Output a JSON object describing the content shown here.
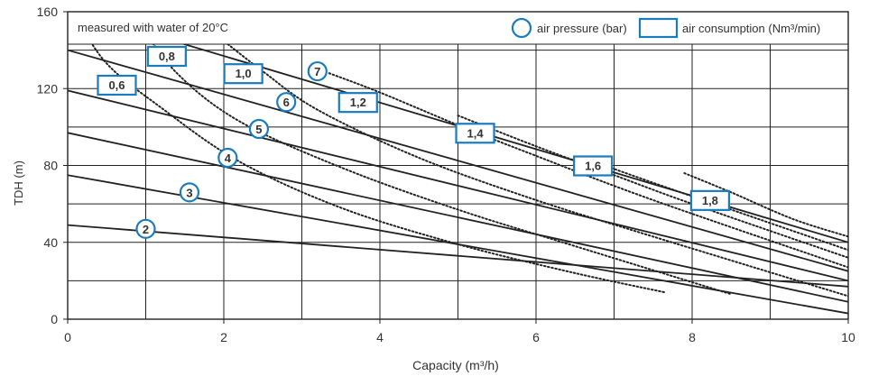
{
  "chart_data": {
    "type": "line",
    "note": "measured with water of 20°C",
    "legend": [
      {
        "shape": "circle",
        "label": "air pressure (bar)"
      },
      {
        "shape": "rect",
        "label": "air consumption (Nm³/min)"
      }
    ],
    "xlabel": "Capacity (m³/h)",
    "ylabel": "TDH (m)",
    "xlim": [
      0,
      10
    ],
    "ylim": [
      0,
      160
    ],
    "x_ticks": [
      "0",
      "2",
      "4",
      "6",
      "8",
      "10"
    ],
    "y_ticks": [
      "0",
      "40",
      "80",
      "120",
      "160"
    ],
    "grid": true,
    "colors": {
      "accent": "#1a7bbf",
      "line": "#222222",
      "grid": "#222222"
    },
    "pressure_curves": [
      {
        "label": "2",
        "points": [
          [
            0,
            49
          ],
          [
            10,
            17
          ]
        ],
        "label_at": [
          1.0,
          47
        ]
      },
      {
        "label": "3",
        "points": [
          [
            0,
            75
          ],
          [
            10,
            3
          ]
        ],
        "label_at": [
          1.56,
          66
        ]
      },
      {
        "label": "4",
        "points": [
          [
            0,
            97
          ],
          [
            10,
            9
          ]
        ],
        "label_at": [
          2.05,
          84
        ]
      },
      {
        "label": "5",
        "points": [
          [
            0,
            119
          ],
          [
            10,
            20
          ]
        ],
        "label_at": [
          2.45,
          99
        ]
      },
      {
        "label": "6",
        "points": [
          [
            0,
            140
          ],
          [
            10,
            25
          ]
        ],
        "label_at": [
          2.8,
          113
        ]
      },
      {
        "label": "7",
        "points": [
          [
            0.1,
            160
          ],
          [
            10,
            40
          ]
        ],
        "label_at": [
          3.2,
          129
        ]
      }
    ],
    "consumption_curves": [
      {
        "label": "0,6",
        "points": [
          [
            0.1,
            158
          ],
          [
            0.5,
            133
          ],
          [
            1.2,
            110
          ],
          [
            2.2,
            82
          ],
          [
            3.5,
            58
          ],
          [
            5,
            39
          ],
          [
            6.5,
            24
          ],
          [
            7.65,
            14
          ]
        ],
        "label_at": [
          0.63,
          122
        ]
      },
      {
        "label": "0,8",
        "points": [
          [
            0.9,
            155
          ],
          [
            1.4,
            128
          ],
          [
            2.2,
            103
          ],
          [
            3.5,
            79
          ],
          [
            5,
            57
          ],
          [
            6.5,
            38
          ],
          [
            8.5,
            13
          ]
        ],
        "label_at": [
          1.27,
          137
        ]
      },
      {
        "label": "1,0",
        "points": [
          [
            1.9,
            148
          ],
          [
            2.5,
            129
          ],
          [
            3.2,
            109
          ],
          [
            4.5,
            84
          ],
          [
            6,
            62
          ],
          [
            7.5,
            43
          ],
          [
            10,
            12
          ]
        ],
        "label_at": [
          2.25,
          128
        ]
      },
      {
        "label": "1,2",
        "points": [
          [
            3.35,
            128
          ],
          [
            4,
            118
          ],
          [
            5,
            101
          ],
          [
            6,
            85
          ],
          [
            7.5,
            62
          ],
          [
            10,
            27
          ]
        ],
        "label_at": [
          3.72,
          113
        ]
      },
      {
        "label": "1,4",
        "points": [
          [
            5.0,
            106
          ],
          [
            6,
            90
          ],
          [
            7,
            75
          ],
          [
            8,
            60
          ],
          [
            10,
            32
          ]
        ],
        "label_at": [
          5.22,
          97
        ]
      },
      {
        "label": "1,6",
        "points": [
          [
            6.6,
            84
          ],
          [
            7.5,
            71
          ],
          [
            8.5,
            57
          ],
          [
            10,
            36
          ]
        ],
        "label_at": [
          6.73,
          80
        ]
      },
      {
        "label": "1,8",
        "points": [
          [
            7.9,
            76
          ],
          [
            8.5,
            66
          ],
          [
            9.3,
            52
          ],
          [
            10,
            43
          ]
        ],
        "label_at": [
          8.23,
          62
        ]
      }
    ]
  }
}
